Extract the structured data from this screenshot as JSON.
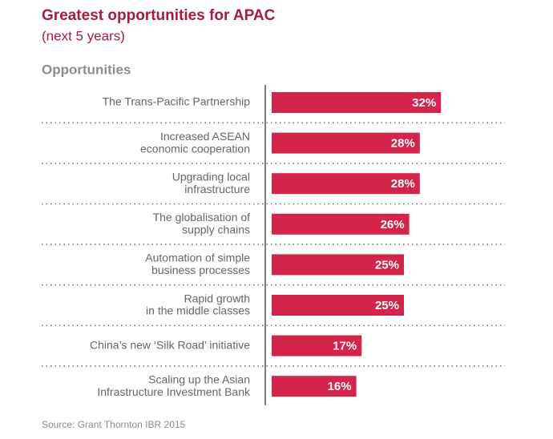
{
  "chart_data": {
    "type": "bar",
    "orientation": "horizontal",
    "title": "Greatest opportunities for APAC",
    "subtitle": "(next 5 years)",
    "y_label": "Opportunities",
    "categories": [
      "The Trans-Pacific Partnership",
      "Increased ASEAN\neconomic cooperation",
      "Upgrading local\ninfrastructure",
      "The globalisation of\nsupply chains",
      "Automation of simple\nbusiness processes",
      "Rapid growth\nin the middle classes",
      "China’s new ‘Silk Road’ initiative",
      "Scaling up the Asian\nInfrastructure Investment Bank"
    ],
    "values": [
      32,
      28,
      28,
      26,
      25,
      25,
      17,
      16
    ],
    "value_labels": [
      "32%",
      "28%",
      "28%",
      "26%",
      "25%",
      "25%",
      "17%",
      "16%"
    ],
    "color": "#d4244a",
    "source": "Source: Grant Thornton IBR 2015"
  }
}
